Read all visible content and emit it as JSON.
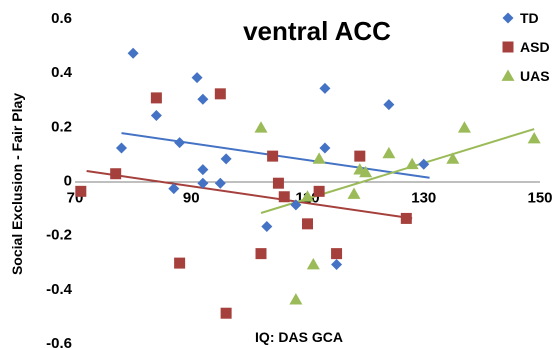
{
  "chart_data": {
    "type": "scatter",
    "title": "ventral ACC",
    "xlabel": "IQ: DAS GCA",
    "ylabel": "Social Exclusion - Fair Play",
    "xlim": [
      70,
      150
    ],
    "ylim": [
      -0.6,
      0.6
    ],
    "x_ticks": [
      "70",
      "90",
      "110",
      "130",
      "150"
    ],
    "y_ticks": [
      "0.6",
      "0.4",
      "0.2",
      "0",
      "-0.2",
      "-0.4",
      "-0.6"
    ],
    "x_tick_values": [
      70,
      90,
      110,
      130,
      150
    ],
    "y_tick_values": [
      0.6,
      0.4,
      0.2,
      0,
      -0.2,
      -0.4,
      -0.6
    ],
    "grid": false,
    "legend_position": "top-right",
    "series": [
      {
        "name": "TD",
        "color": "#4472C4",
        "marker": "diamond",
        "points": [
          [
            78,
            0.12
          ],
          [
            80,
            0.47
          ],
          [
            84,
            0.24
          ],
          [
            88,
            0.14
          ],
          [
            87,
            -0.03
          ],
          [
            91,
            0.38
          ],
          [
            92,
            0.3
          ],
          [
            92,
            0.04
          ],
          [
            92,
            -0.01
          ],
          [
            95,
            -0.01
          ],
          [
            96,
            0.08
          ],
          [
            103,
            -0.17
          ],
          [
            108,
            -0.09
          ],
          [
            113,
            0.34
          ],
          [
            113,
            0.12
          ],
          [
            115,
            -0.31
          ],
          [
            124,
            0.28
          ],
          [
            130,
            0.06
          ]
        ],
        "trendline": [
          [
            78,
            0.175
          ],
          [
            131,
            0.01
          ]
        ]
      },
      {
        "name": "ASD",
        "color": "#A5403C",
        "marker": "square",
        "points": [
          [
            71,
            -0.04
          ],
          [
            77,
            0.025
          ],
          [
            84,
            0.305
          ],
          [
            88,
            -0.305
          ],
          [
            95,
            0.32
          ],
          [
            102,
            -0.27
          ],
          [
            104,
            0.09
          ],
          [
            105,
            -0.01
          ],
          [
            106,
            -0.06
          ],
          [
            110,
            -0.16
          ],
          [
            112,
            -0.04
          ],
          [
            115,
            -0.27
          ],
          [
            119,
            0.09
          ],
          [
            127,
            -0.14
          ],
          [
            96,
            -0.49
          ]
        ],
        "trendline": [
          [
            72,
            0.035
          ],
          [
            128,
            -0.14
          ]
        ]
      },
      {
        "name": "UAS",
        "color": "#9BBB59",
        "marker": "triangle",
        "points": [
          [
            102,
            0.195
          ],
          [
            108,
            -0.44
          ],
          [
            110,
            -0.06
          ],
          [
            111,
            -0.31
          ],
          [
            112,
            0.08
          ],
          [
            118,
            -0.05
          ],
          [
            119,
            0.04
          ],
          [
            120,
            0.03
          ],
          [
            124,
            0.1
          ],
          [
            128,
            0.06
          ],
          [
            135,
            0.08
          ],
          [
            137,
            0.195
          ],
          [
            149,
            0.155
          ]
        ],
        "trendline": [
          [
            102,
            -0.12
          ],
          [
            149,
            0.19
          ]
        ]
      }
    ]
  }
}
